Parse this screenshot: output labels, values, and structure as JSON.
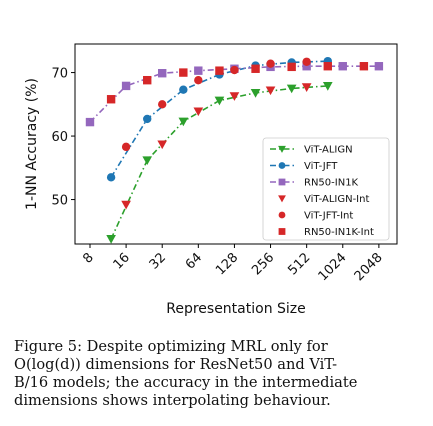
{
  "chart_data": {
    "type": "line",
    "xlabel": "Representation Size",
    "ylabel": "1-NN Accuracy (%)",
    "x_scale": "log2",
    "xlim": [
      6,
      2900
    ],
    "ylim": [
      43,
      74.5
    ],
    "x_ticks": [
      "8",
      "16",
      "32",
      "64",
      "128",
      "256",
      "512",
      "1024",
      "2048"
    ],
    "y_ticks": [
      "50",
      "60",
      "70"
    ],
    "grid": false,
    "legend_position": "lower-right",
    "colors": {
      "vit_align": "#2ca02c",
      "vit_jft": "#1f77b4",
      "rn50": "#9467bd",
      "vit_align_int": "#d62728",
      "vit_jft_int": "#d62728",
      "rn50_int": "#d62728"
    },
    "series": [
      {
        "name": "ViT-ALIGN",
        "marker": "triangle-down",
        "style": "dash-dot",
        "color": "#2ca02c",
        "x": [
          12,
          24,
          48,
          96,
          192,
          384,
          768
        ],
        "y": [
          43.8,
          56.2,
          62.3,
          65.6,
          66.8,
          67.5,
          67.9
        ]
      },
      {
        "name": "ViT-JFT",
        "marker": "circle",
        "style": "dash-dot",
        "color": "#1f77b4",
        "x": [
          12,
          24,
          48,
          96,
          192,
          384,
          768
        ],
        "y": [
          53.5,
          62.7,
          67.3,
          69.7,
          71.1,
          71.6,
          71.8
        ]
      },
      {
        "name": "RN50-IN1K",
        "marker": "square",
        "style": "dash-dot",
        "color": "#9467bd",
        "x": [
          8,
          16,
          32,
          64,
          128,
          256,
          512,
          1024,
          2048
        ],
        "y": [
          62.2,
          67.9,
          69.9,
          70.3,
          70.6,
          70.9,
          71.0,
          71.0,
          71.0
        ]
      },
      {
        "name": "ViT-ALIGN-Int",
        "marker": "triangle-down",
        "style": "none",
        "color": "#d62728",
        "x": [
          16,
          32,
          64,
          128,
          256,
          512
        ],
        "y": [
          49.2,
          58.7,
          63.9,
          66.3,
          67.2,
          67.7
        ]
      },
      {
        "name": "ViT-JFT-Int",
        "marker": "circle",
        "style": "none",
        "color": "#d62728",
        "x": [
          16,
          32,
          64,
          128,
          256,
          512
        ],
        "y": [
          58.3,
          65.0,
          68.8,
          70.4,
          71.4,
          71.7
        ]
      },
      {
        "name": "RN50-IN1K-Int",
        "marker": "square",
        "style": "none",
        "color": "#d62728",
        "x": [
          12,
          24,
          48,
          96,
          192,
          384,
          768,
          1536
        ],
        "y": [
          65.8,
          68.8,
          70.0,
          70.3,
          70.6,
          70.9,
          71.0,
          71.0
        ]
      }
    ]
  },
  "caption": {
    "line1": "Figure 5:  Despite optimizing MRL only for",
    "line2": "O(log(d)) dimensions for ResNet50 and ViT-",
    "line3": "B/16 models; the accuracy in the intermediate",
    "line4": "dimensions shows interpolating behaviour."
  }
}
